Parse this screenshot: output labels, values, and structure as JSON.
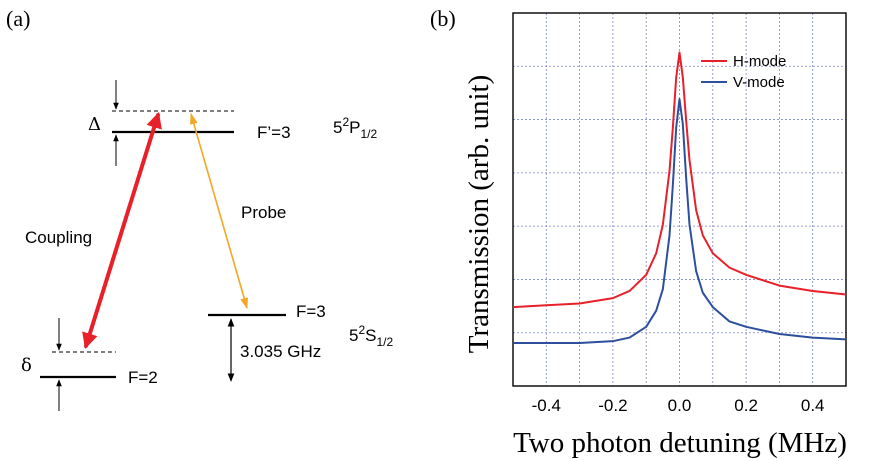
{
  "panel_a": {
    "label": "(a)",
    "detuning_upper": "Δ",
    "detuning_lower": "δ",
    "levels": {
      "excited": {
        "name": "F’=3",
        "term": "5",
        "term_sup": "2",
        "term_main": "P",
        "term_sub": "1/2"
      },
      "ground_upper": {
        "name": "F=3",
        "term": "5",
        "term_sup": "2",
        "term_main": "S",
        "term_sub": "1/2"
      },
      "ground_lower": {
        "name": "F=2"
      }
    },
    "transitions": {
      "coupling": {
        "label": "Coupling",
        "color": "#e8202a"
      },
      "probe": {
        "label": "Probe",
        "color": "#f5a623"
      }
    },
    "splitting": "3.035 GHz"
  },
  "panel_b": {
    "label": "(b)",
    "chart_data": {
      "type": "line",
      "xlabel": "Two photon detuning (MHz)",
      "ylabel": "Transmission (arb. unit)",
      "xlim": [
        -0.5,
        0.5
      ],
      "ylim": [
        0,
        1.04
      ],
      "x_ticks": [
        -0.4,
        -0.2,
        0.0,
        0.2,
        0.4
      ],
      "x_tick_labels": [
        "-0.4",
        "-0.2",
        "0.0",
        "0.2",
        "0.4"
      ],
      "grid": true,
      "grid_style": "dotted",
      "legend_position": "top-right",
      "series": [
        {
          "name": "H-mode",
          "color": "#e8202a",
          "x": [
            -0.5,
            -0.4,
            -0.3,
            -0.2,
            -0.15,
            -0.1,
            -0.07,
            -0.05,
            -0.03,
            -0.02,
            -0.01,
            0.0,
            0.01,
            0.02,
            0.03,
            0.05,
            0.07,
            0.1,
            0.15,
            0.2,
            0.3,
            0.4,
            0.5
          ],
          "y": [
            0.22,
            0.225,
            0.23,
            0.245,
            0.265,
            0.31,
            0.37,
            0.45,
            0.6,
            0.72,
            0.86,
            0.93,
            0.86,
            0.74,
            0.63,
            0.49,
            0.42,
            0.37,
            0.33,
            0.31,
            0.28,
            0.265,
            0.255
          ]
        },
        {
          "name": "V-mode",
          "color": "#2d4f9e",
          "x": [
            -0.5,
            -0.4,
            -0.3,
            -0.2,
            -0.15,
            -0.1,
            -0.07,
            -0.05,
            -0.03,
            -0.02,
            -0.01,
            0.0,
            0.01,
            0.02,
            0.03,
            0.05,
            0.07,
            0.1,
            0.15,
            0.2,
            0.3,
            0.4,
            0.5
          ],
          "y": [
            0.12,
            0.12,
            0.12,
            0.125,
            0.135,
            0.165,
            0.21,
            0.27,
            0.42,
            0.56,
            0.72,
            0.8,
            0.73,
            0.58,
            0.45,
            0.32,
            0.26,
            0.22,
            0.18,
            0.165,
            0.145,
            0.135,
            0.13
          ]
        }
      ]
    }
  }
}
